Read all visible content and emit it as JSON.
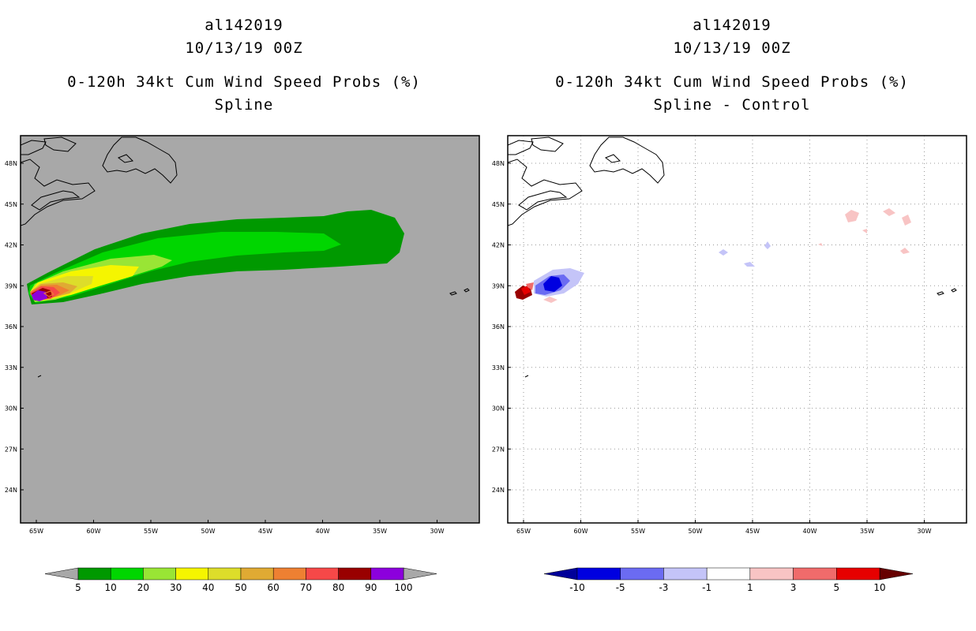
{
  "left": {
    "storm_id": "al142019",
    "datetime": "10/13/19 00Z",
    "product": "0-120h 34kt Cum Wind Speed Probs (%)",
    "variant": "Spline",
    "background_color": "#a8a8a8",
    "legend_labels": [
      "5",
      "10",
      "20",
      "30",
      "40",
      "50",
      "60",
      "70",
      "80",
      "90",
      "100"
    ],
    "legend_colors": [
      "#009900",
      "#00d600",
      "#99e535",
      "#f5f500",
      "#dddd2a",
      "#e0aa33",
      "#ee8032",
      "#f64848",
      "#990000",
      "#8c00dd"
    ]
  },
  "right": {
    "storm_id": "al142019",
    "datetime": "10/13/19 00Z",
    "product": "0-120h 34kt Cum Wind Speed Probs (%)",
    "variant": "Spline - Control",
    "background_color": "#ffffff",
    "legend_labels": [
      "-10",
      "-5",
      "-3",
      "-1",
      "1",
      "3",
      "5",
      "10"
    ],
    "legend_colors": [
      "#0000e0",
      "#6b6bf2",
      "#c4c4f8",
      "#ffffff",
      "#f8c4c4",
      "#f06b6b",
      "#e60000"
    ]
  },
  "axes": {
    "lat_labels": [
      "48N",
      "45N",
      "42N",
      "39N",
      "36N",
      "33N",
      "30N",
      "27N",
      "24N"
    ],
    "lon_labels": [
      "65W",
      "60W",
      "55W",
      "50W",
      "45W",
      "40W",
      "35W",
      "30W"
    ]
  }
}
